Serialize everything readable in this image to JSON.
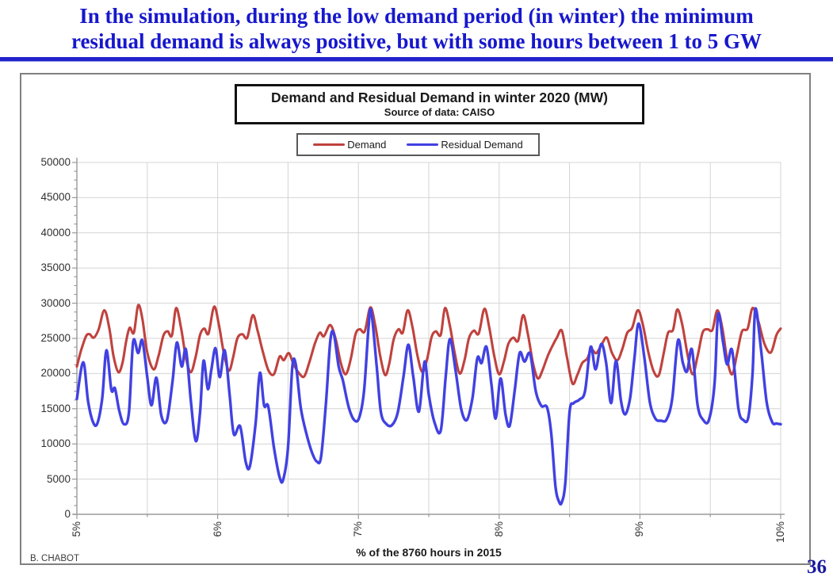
{
  "header": {
    "line1": "In the simulation, during the low demand period (in winter) the minimum",
    "line2": "residual demand is always positive, but with some hours between 1 to 5 GW"
  },
  "credit": "B. CHABOT",
  "page_number": "36",
  "colors": {
    "header_blue": "#1717cd",
    "rule_blue": "#2222cd",
    "demand_red": "#c0423e",
    "residual_blue": "#4141e2",
    "grid": "#d4d4d4",
    "axis": "#9a9a9a",
    "frame_border": "#808080",
    "page_number_blue": "#1b1b9e"
  },
  "chart_data": {
    "type": "line",
    "title": "Demand and Residual Demand in winter 2020 (MW)",
    "subtitle": "Source of data: CAISO",
    "xlabel": "% of the 8760 hours in 2015",
    "x_range": [
      5,
      10
    ],
    "x_ticks": [
      "5%",
      "6%",
      "7%",
      "8%",
      "9%",
      "10%"
    ],
    "ylim": [
      0,
      50000
    ],
    "y_tick_step": 5000,
    "y_minor_step": 1250,
    "grid": {
      "h_step": 5000,
      "v_step_pct": 0.5
    },
    "legend_position": "top",
    "series": [
      {
        "name": "Demand",
        "color": "#c0423e",
        "points": [
          [
            5.0,
            21000
          ],
          [
            5.03,
            23300
          ],
          [
            5.065,
            25300
          ],
          [
            5.09,
            25600
          ],
          [
            5.12,
            25100
          ],
          [
            5.155,
            26300
          ],
          [
            5.195,
            29000
          ],
          [
            5.23,
            26500
          ],
          [
            5.26,
            22500
          ],
          [
            5.295,
            20200
          ],
          [
            5.325,
            21600
          ],
          [
            5.35,
            24600
          ],
          [
            5.375,
            26500
          ],
          [
            5.405,
            25800
          ],
          [
            5.435,
            29700
          ],
          [
            5.465,
            27800
          ],
          [
            5.5,
            23000
          ],
          [
            5.545,
            20600
          ],
          [
            5.58,
            22500
          ],
          [
            5.615,
            25400
          ],
          [
            5.645,
            26000
          ],
          [
            5.675,
            25400
          ],
          [
            5.705,
            29300
          ],
          [
            5.74,
            26500
          ],
          [
            5.775,
            22200
          ],
          [
            5.81,
            20200
          ],
          [
            5.845,
            22500
          ],
          [
            5.875,
            25500
          ],
          [
            5.905,
            26400
          ],
          [
            5.935,
            25700
          ],
          [
            5.975,
            29500
          ],
          [
            6.01,
            26800
          ],
          [
            6.045,
            22800
          ],
          [
            6.08,
            20400
          ],
          [
            6.11,
            22300
          ],
          [
            6.14,
            25000
          ],
          [
            6.175,
            25600
          ],
          [
            6.21,
            25100
          ],
          [
            6.25,
            28300
          ],
          [
            6.285,
            26000
          ],
          [
            6.32,
            23200
          ],
          [
            6.36,
            20500
          ],
          [
            6.4,
            19900
          ],
          [
            6.44,
            22400
          ],
          [
            6.47,
            21900
          ],
          [
            6.505,
            22900
          ],
          [
            6.54,
            21300
          ],
          [
            6.58,
            20000
          ],
          [
            6.615,
            19600
          ],
          [
            6.65,
            21500
          ],
          [
            6.69,
            24200
          ],
          [
            6.725,
            25800
          ],
          [
            6.755,
            25300
          ],
          [
            6.8,
            26900
          ],
          [
            6.84,
            24800
          ],
          [
            6.875,
            21500
          ],
          [
            6.91,
            19900
          ],
          [
            6.945,
            22000
          ],
          [
            6.98,
            25600
          ],
          [
            7.01,
            26300
          ],
          [
            7.045,
            26000
          ],
          [
            7.085,
            29400
          ],
          [
            7.12,
            26800
          ],
          [
            7.155,
            22500
          ],
          [
            7.19,
            19800
          ],
          [
            7.22,
            21500
          ],
          [
            7.25,
            24800
          ],
          [
            7.285,
            26300
          ],
          [
            7.315,
            25800
          ],
          [
            7.35,
            29000
          ],
          [
            7.385,
            26500
          ],
          [
            7.42,
            22500
          ],
          [
            7.455,
            20200
          ],
          [
            7.49,
            22200
          ],
          [
            7.52,
            25200
          ],
          [
            7.55,
            26000
          ],
          [
            7.585,
            25500
          ],
          [
            7.615,
            29300
          ],
          [
            7.65,
            26800
          ],
          [
            7.685,
            22800
          ],
          [
            7.72,
            20000
          ],
          [
            7.755,
            22000
          ],
          [
            7.785,
            25000
          ],
          [
            7.82,
            26100
          ],
          [
            7.855,
            25700
          ],
          [
            7.895,
            29200
          ],
          [
            7.93,
            26500
          ],
          [
            7.965,
            22500
          ],
          [
            8.0,
            19900
          ],
          [
            8.035,
            21800
          ],
          [
            8.065,
            24200
          ],
          [
            8.1,
            25100
          ],
          [
            8.135,
            24700
          ],
          [
            8.17,
            28300
          ],
          [
            8.205,
            25500
          ],
          [
            8.24,
            21500
          ],
          [
            8.275,
            19300
          ],
          [
            8.31,
            20600
          ],
          [
            8.345,
            22500
          ],
          [
            8.38,
            24000
          ],
          [
            8.41,
            25100
          ],
          [
            8.445,
            26100
          ],
          [
            8.48,
            22500
          ],
          [
            8.52,
            18600
          ],
          [
            8.555,
            19800
          ],
          [
            8.59,
            21500
          ],
          [
            8.625,
            22100
          ],
          [
            8.655,
            23400
          ],
          [
            8.69,
            22900
          ],
          [
            8.73,
            24200
          ],
          [
            8.765,
            25100
          ],
          [
            8.8,
            23000
          ],
          [
            8.84,
            21900
          ],
          [
            8.875,
            23500
          ],
          [
            8.91,
            25800
          ],
          [
            8.945,
            26500
          ],
          [
            8.985,
            29000
          ],
          [
            9.02,
            27000
          ],
          [
            9.06,
            23000
          ],
          [
            9.1,
            20200
          ],
          [
            9.135,
            19800
          ],
          [
            9.17,
            23000
          ],
          [
            9.2,
            25800
          ],
          [
            9.235,
            26200
          ],
          [
            9.265,
            29100
          ],
          [
            9.3,
            27000
          ],
          [
            9.34,
            22500
          ],
          [
            9.375,
            19900
          ],
          [
            9.41,
            22500
          ],
          [
            9.445,
            25800
          ],
          [
            9.48,
            26300
          ],
          [
            9.515,
            26200
          ],
          [
            9.55,
            29000
          ],
          [
            9.585,
            26500
          ],
          [
            9.62,
            22000
          ],
          [
            9.655,
            19900
          ],
          [
            9.69,
            22800
          ],
          [
            9.725,
            26000
          ],
          [
            9.765,
            26400
          ],
          [
            9.8,
            29300
          ],
          [
            9.84,
            27500
          ],
          [
            9.885,
            24200
          ],
          [
            9.93,
            23000
          ],
          [
            9.97,
            25500
          ],
          [
            10.0,
            26400
          ]
        ]
      },
      {
        "name": "Residual Demand",
        "color": "#4141e2",
        "points": [
          [
            5.0,
            16400
          ],
          [
            5.045,
            21600
          ],
          [
            5.08,
            16000
          ],
          [
            5.115,
            13100
          ],
          [
            5.145,
            12900
          ],
          [
            5.18,
            16500
          ],
          [
            5.21,
            23300
          ],
          [
            5.245,
            17700
          ],
          [
            5.27,
            17900
          ],
          [
            5.3,
            14800
          ],
          [
            5.335,
            12800
          ],
          [
            5.37,
            14500
          ],
          [
            5.4,
            24500
          ],
          [
            5.435,
            22900
          ],
          [
            5.465,
            24700
          ],
          [
            5.5,
            19500
          ],
          [
            5.53,
            15500
          ],
          [
            5.565,
            19400
          ],
          [
            5.6,
            14000
          ],
          [
            5.64,
            13400
          ],
          [
            5.68,
            19000
          ],
          [
            5.71,
            24400
          ],
          [
            5.745,
            21000
          ],
          [
            5.775,
            23400
          ],
          [
            5.81,
            16000
          ],
          [
            5.845,
            10400
          ],
          [
            5.875,
            14500
          ],
          [
            5.9,
            21800
          ],
          [
            5.93,
            17800
          ],
          [
            5.955,
            20500
          ],
          [
            5.985,
            23600
          ],
          [
            6.015,
            19500
          ],
          [
            6.05,
            23300
          ],
          [
            6.085,
            17000
          ],
          [
            6.115,
            11400
          ],
          [
            6.16,
            12500
          ],
          [
            6.2,
            7400
          ],
          [
            6.23,
            6900
          ],
          [
            6.27,
            13000
          ],
          [
            6.3,
            20100
          ],
          [
            6.33,
            15500
          ],
          [
            6.36,
            15300
          ],
          [
            6.4,
            9500
          ],
          [
            6.44,
            5300
          ],
          [
            6.465,
            4900
          ],
          [
            6.5,
            9500
          ],
          [
            6.53,
            20800
          ],
          [
            6.555,
            21300
          ],
          [
            6.59,
            15200
          ],
          [
            6.63,
            11500
          ],
          [
            6.67,
            8800
          ],
          [
            6.705,
            7500
          ],
          [
            6.735,
            8200
          ],
          [
            6.77,
            16000
          ],
          [
            6.8,
            24600
          ],
          [
            6.825,
            25700
          ],
          [
            6.86,
            21000
          ],
          [
            6.89,
            19000
          ],
          [
            6.93,
            15300
          ],
          [
            6.97,
            13400
          ],
          [
            7.005,
            13700
          ],
          [
            7.04,
            17500
          ],
          [
            7.07,
            26000
          ],
          [
            7.09,
            29000
          ],
          [
            7.13,
            21000
          ],
          [
            7.16,
            14500
          ],
          [
            7.2,
            12800
          ],
          [
            7.24,
            12700
          ],
          [
            7.28,
            14500
          ],
          [
            7.32,
            19500
          ],
          [
            7.355,
            24100
          ],
          [
            7.39,
            19500
          ],
          [
            7.43,
            14600
          ],
          [
            7.47,
            21700
          ],
          [
            7.5,
            17000
          ],
          [
            7.54,
            13100
          ],
          [
            7.585,
            11900
          ],
          [
            7.62,
            19500
          ],
          [
            7.65,
            24900
          ],
          [
            7.69,
            20500
          ],
          [
            7.73,
            15000
          ],
          [
            7.77,
            13400
          ],
          [
            7.81,
            16500
          ],
          [
            7.845,
            22200
          ],
          [
            7.875,
            21500
          ],
          [
            7.91,
            23800
          ],
          [
            7.945,
            18500
          ],
          [
            7.975,
            13600
          ],
          [
            8.01,
            19300
          ],
          [
            8.045,
            14200
          ],
          [
            8.075,
            12600
          ],
          [
            8.11,
            17500
          ],
          [
            8.145,
            22900
          ],
          [
            8.18,
            21700
          ],
          [
            8.22,
            22800
          ],
          [
            8.26,
            17500
          ],
          [
            8.3,
            15400
          ],
          [
            8.34,
            15200
          ],
          [
            8.37,
            11500
          ],
          [
            8.4,
            4000
          ],
          [
            8.425,
            1800
          ],
          [
            8.445,
            1700
          ],
          [
            8.47,
            4500
          ],
          [
            8.5,
            14500
          ],
          [
            8.53,
            15800
          ],
          [
            8.57,
            16300
          ],
          [
            8.61,
            17500
          ],
          [
            8.65,
            23800
          ],
          [
            8.685,
            20600
          ],
          [
            8.725,
            24200
          ],
          [
            8.76,
            21500
          ],
          [
            8.795,
            15800
          ],
          [
            8.83,
            21800
          ],
          [
            8.865,
            16200
          ],
          [
            8.895,
            14200
          ],
          [
            8.93,
            16500
          ],
          [
            8.96,
            22000
          ],
          [
            8.99,
            27100
          ],
          [
            9.03,
            22500
          ],
          [
            9.07,
            16000
          ],
          [
            9.11,
            13600
          ],
          [
            9.15,
            13300
          ],
          [
            9.19,
            13500
          ],
          [
            9.23,
            16500
          ],
          [
            9.27,
            24700
          ],
          [
            9.305,
            21500
          ],
          [
            9.335,
            20300
          ],
          [
            9.37,
            23400
          ],
          [
            9.41,
            15500
          ],
          [
            9.45,
            13400
          ],
          [
            9.49,
            13400
          ],
          [
            9.53,
            18500
          ],
          [
            9.555,
            28400
          ],
          [
            9.59,
            24500
          ],
          [
            9.62,
            21300
          ],
          [
            9.655,
            23300
          ],
          [
            9.7,
            15000
          ],
          [
            9.735,
            13400
          ],
          [
            9.77,
            13800
          ],
          [
            9.8,
            20000
          ],
          [
            9.82,
            29200
          ],
          [
            9.86,
            23500
          ],
          [
            9.9,
            16000
          ],
          [
            9.94,
            13100
          ],
          [
            9.97,
            12900
          ],
          [
            10.0,
            12800
          ]
        ]
      }
    ]
  }
}
